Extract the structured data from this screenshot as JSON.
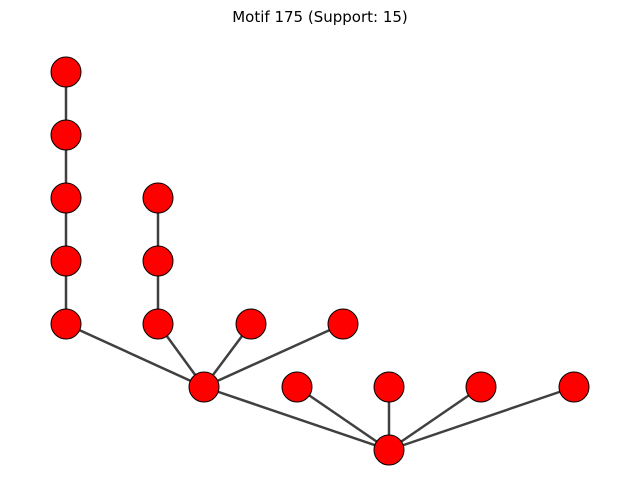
{
  "figure": {
    "title": "Motif 175 (Support: 15)"
  },
  "graph": {
    "node_color": "#ff0000",
    "node_edge_color": "#000000",
    "edge_color": "#404040",
    "node_count": 16,
    "edge_count": 15,
    "nodes": [
      "n1",
      "n2",
      "n3",
      "n4",
      "n5",
      "n6",
      "n7",
      "n8",
      "n9",
      "n10",
      "n11",
      "n12",
      "n13",
      "n14",
      "n15",
      "n16"
    ],
    "edges": [
      [
        "n1",
        "n2"
      ],
      [
        "n2",
        "n3"
      ],
      [
        "n3",
        "n4"
      ],
      [
        "n4",
        "n5"
      ],
      [
        "n6",
        "n7"
      ],
      [
        "n7",
        "n8"
      ],
      [
        "n5",
        "n11"
      ],
      [
        "n8",
        "n11"
      ],
      [
        "n9",
        "n11"
      ],
      [
        "n10",
        "n11"
      ],
      [
        "n11",
        "n16"
      ],
      [
        "n12",
        "n16"
      ],
      [
        "n13",
        "n16"
      ],
      [
        "n14",
        "n16"
      ],
      [
        "n15",
        "n16"
      ]
    ]
  }
}
